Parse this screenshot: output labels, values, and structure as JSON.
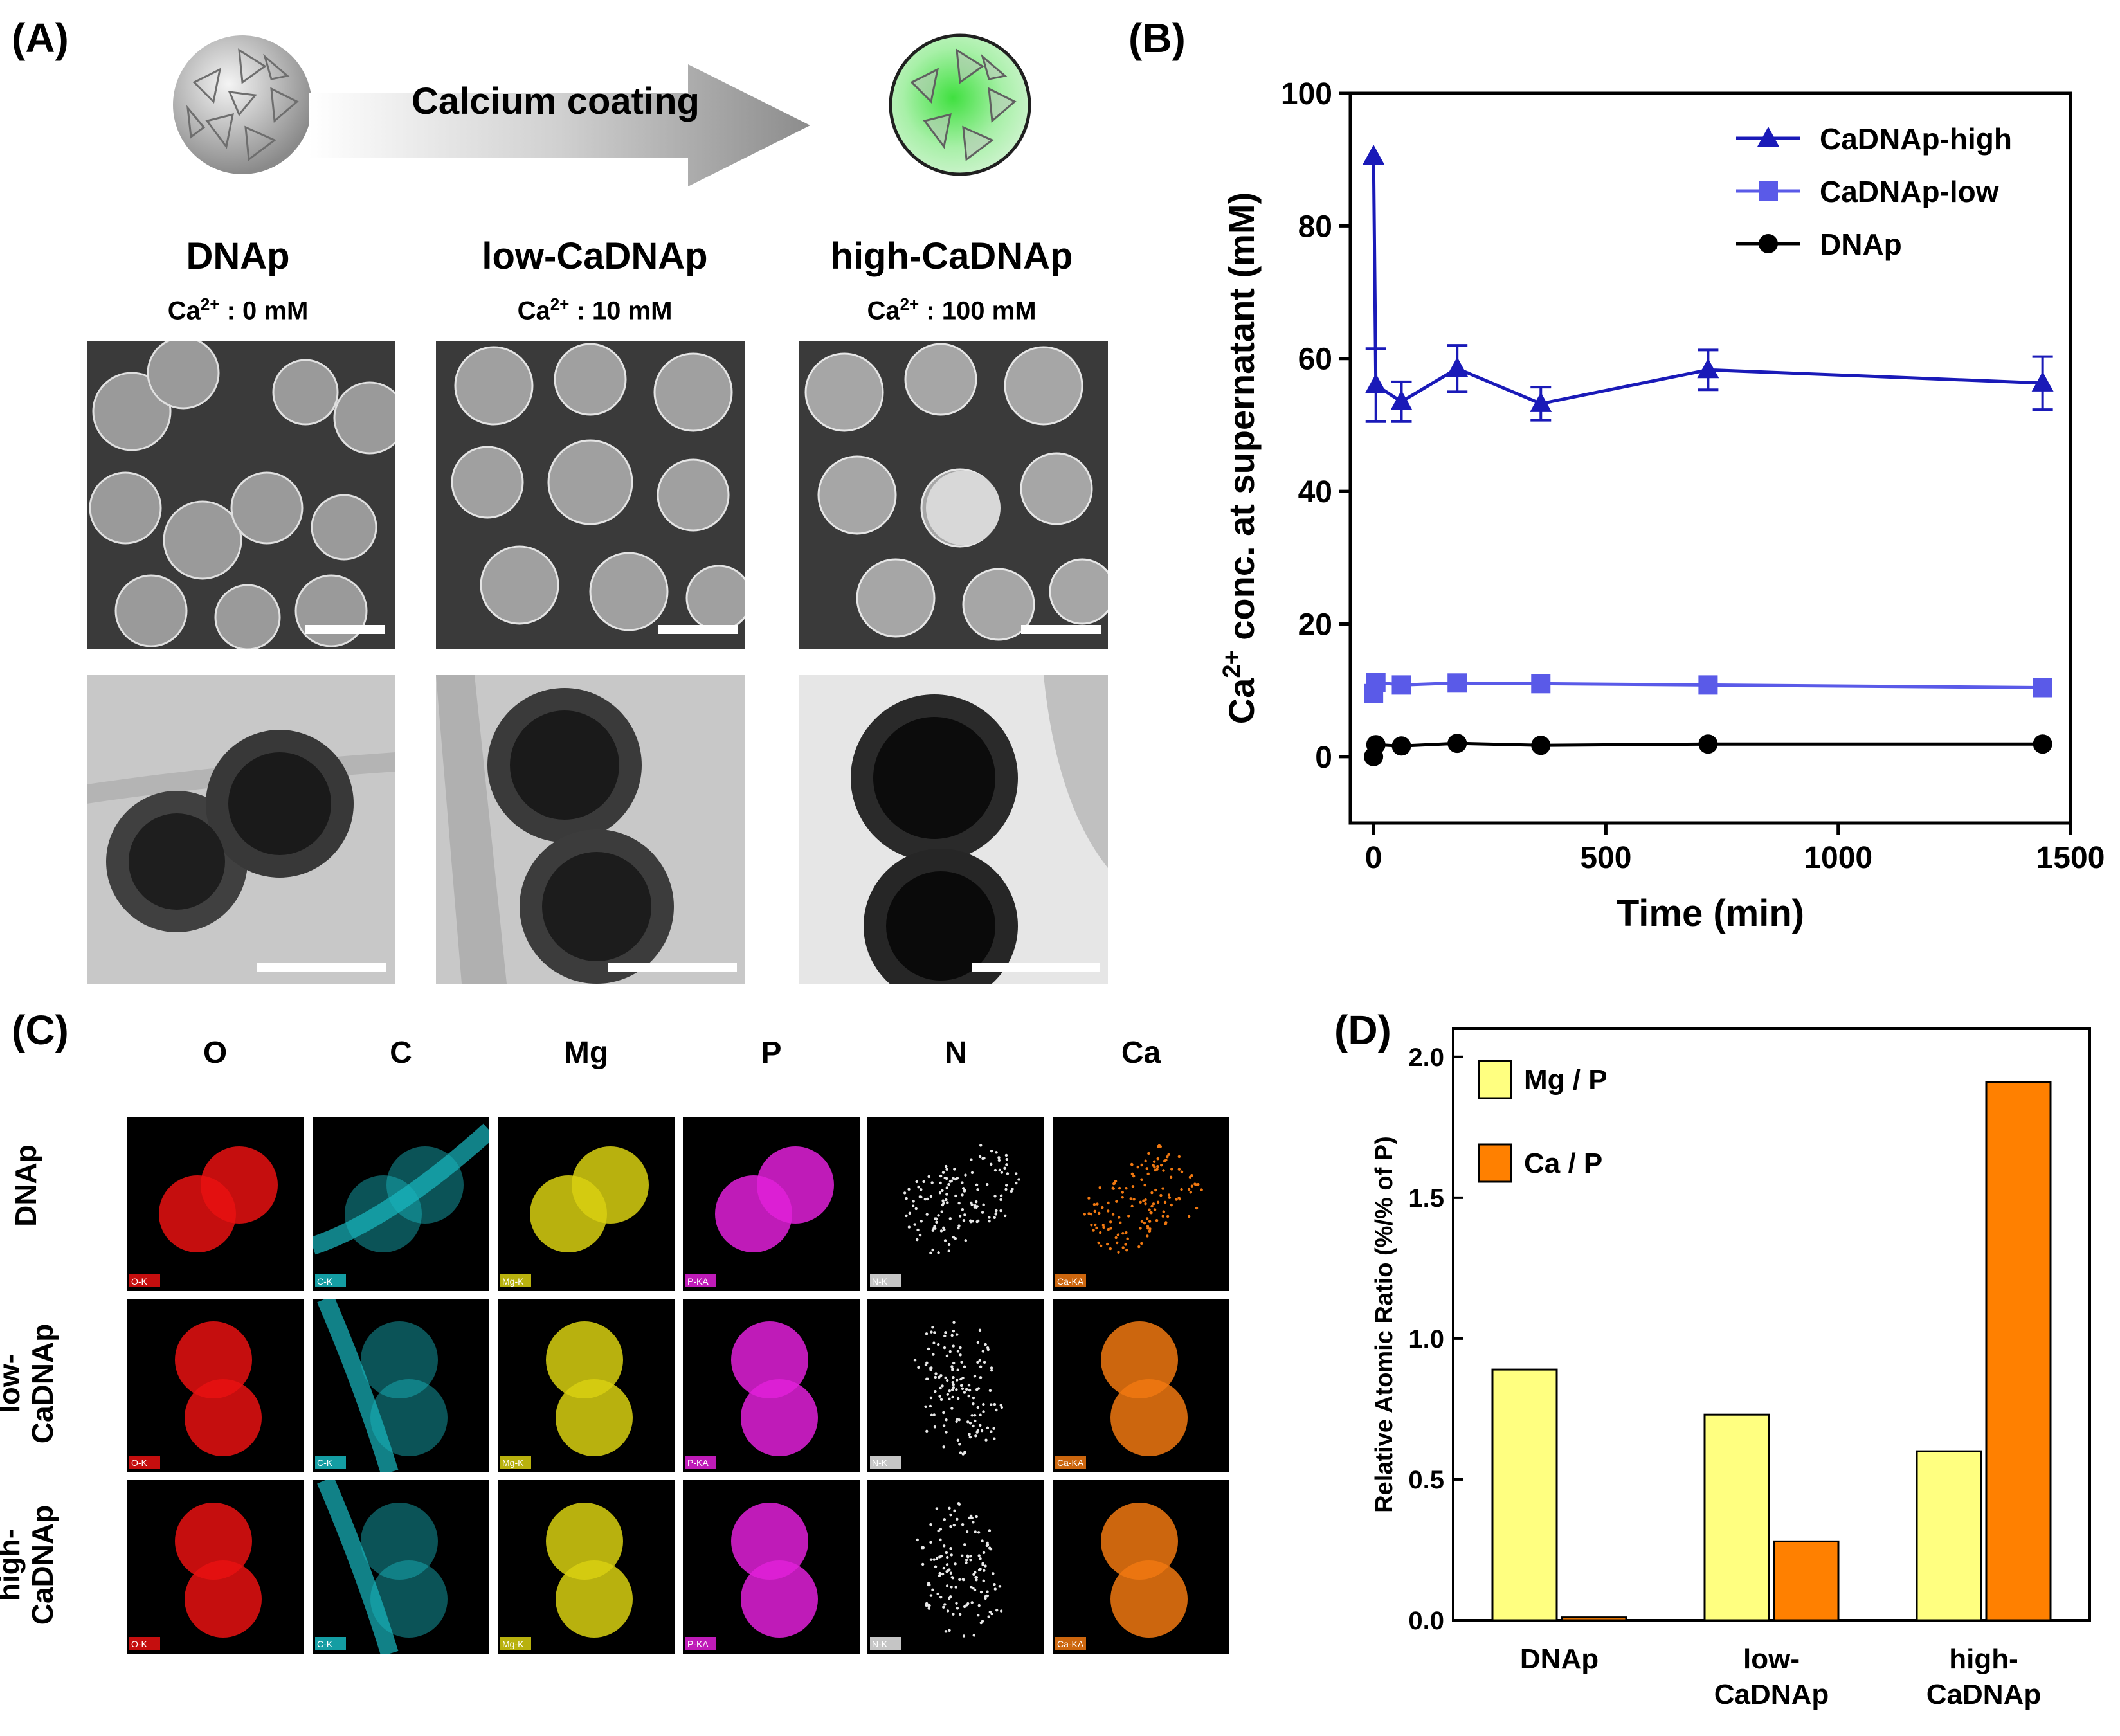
{
  "panelA": {
    "label": "(A)",
    "arrow_text": "Calcium coating",
    "columns": [
      {
        "name": "DNAp",
        "ca_prefix": "Ca",
        "ca_sup": "2+",
        "ca_value": " : 0 mM"
      },
      {
        "name": "low-CaDNAp",
        "ca_prefix": "Ca",
        "ca_sup": "2+",
        "ca_value": " : 10 mM"
      },
      {
        "name": "high-CaDNAp",
        "ca_prefix": "Ca",
        "ca_sup": "2+",
        "ca_value": " : 100 mM"
      }
    ]
  },
  "panelB": {
    "label": "(B)"
  },
  "panelC": {
    "label": "(C)",
    "elements": [
      "O",
      "C",
      "Mg",
      "P",
      "N",
      "Ca"
    ],
    "rows": [
      {
        "line1": "DNAp",
        "line2": ""
      },
      {
        "line1": "low-",
        "line2": "CaDNAp"
      },
      {
        "line1": "high-",
        "line2": "CaDNAp"
      }
    ],
    "tile_tags": [
      "O-K",
      "C-K",
      "Mg-K",
      "P-KA",
      "N-K",
      "Ca-KA"
    ],
    "colors": [
      "#e81010",
      "#18b8c0",
      "#d8d010",
      "#e020d8",
      "#e8e8e8",
      "#f07810"
    ]
  },
  "panelD": {
    "label": "(D)"
  },
  "chart_data": [
    {
      "type": "line",
      "title": "",
      "xlabel": "Time (min)",
      "ylabel_prefix": "Ca",
      "ylabel_sup": "2+",
      "ylabel_suffix": " conc. at supernatant (mM)",
      "xlim": [
        -50,
        1500
      ],
      "ylim": [
        -10,
        100
      ],
      "xticks": [
        0,
        500,
        1000,
        1500
      ],
      "yticks": [
        0,
        20,
        40,
        60,
        80,
        100
      ],
      "legend_position": "top-right",
      "series": [
        {
          "name": "CaDNAp-high",
          "color": "#1a1ab8",
          "marker": "triangle",
          "x": [
            0,
            5,
            60,
            180,
            360,
            720,
            1440
          ],
          "y": [
            90.5,
            56,
            53.5,
            58.5,
            53.2,
            58.3,
            56.3
          ],
          "err": [
            0,
            5.5,
            3,
            3.5,
            2.5,
            3,
            4
          ]
        },
        {
          "name": "CaDNAp-low",
          "color": "#5a5ae8",
          "marker": "square",
          "x": [
            0,
            5,
            60,
            180,
            360,
            720,
            1440
          ],
          "y": [
            9.5,
            11.2,
            10.8,
            11.1,
            11.0,
            10.8,
            10.4
          ],
          "err": [
            0,
            0,
            0,
            0,
            0,
            0,
            0
          ]
        },
        {
          "name": "DNAp",
          "color": "#000000",
          "marker": "circle",
          "x": [
            0,
            5,
            60,
            180,
            360,
            720,
            1440
          ],
          "y": [
            0,
            1.8,
            1.6,
            2.0,
            1.7,
            1.9,
            1.9
          ],
          "err": [
            0,
            0,
            0,
            0,
            0,
            0,
            0
          ]
        }
      ]
    },
    {
      "type": "bar",
      "title": "",
      "xlabel": "",
      "ylabel": "Relative Atomic Ratio (%/% of P)",
      "ylim": [
        0,
        2.1
      ],
      "yticks": [
        "0.0",
        "0.5",
        "1.0",
        "1.5",
        "2.0"
      ],
      "categories": [
        {
          "line1": "DNAp",
          "line2": ""
        },
        {
          "line1": "low-",
          "line2": "CaDNAp"
        },
        {
          "line1": "high-",
          "line2": "CaDNAp"
        }
      ],
      "legend_position": "top-left",
      "series": [
        {
          "name": "Mg / P",
          "color": "#ffff80",
          "values": [
            0.89,
            0.73,
            0.6
          ]
        },
        {
          "name": "Ca / P",
          "color": "#ff8000",
          "values": [
            0.01,
            0.28,
            1.91
          ]
        }
      ]
    }
  ]
}
